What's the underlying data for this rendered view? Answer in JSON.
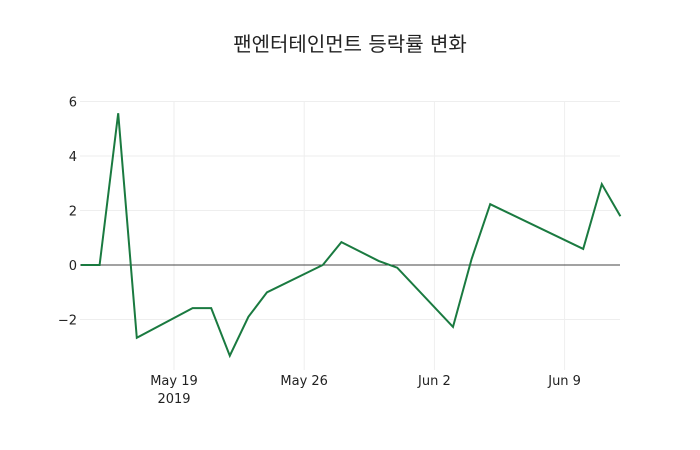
{
  "chart_data": {
    "type": "line",
    "title": "팬엔터테인먼트 등락률 변화",
    "xlabel": "",
    "ylabel": "",
    "x": [
      "2019-05-14",
      "2019-05-15",
      "2019-05-16",
      "2019-05-17",
      "2019-05-20",
      "2019-05-21",
      "2019-05-22",
      "2019-05-23",
      "2019-05-24",
      "2019-05-27",
      "2019-05-28",
      "2019-05-30",
      "2019-05-31",
      "2019-06-03",
      "2019-06-04",
      "2019-06-05",
      "2019-06-10",
      "2019-06-11",
      "2019-06-12"
    ],
    "series": [
      {
        "name": "등락률",
        "color": "#1a7a40",
        "values": [
          0.0,
          0.0,
          5.57,
          -2.67,
          -1.58,
          -1.58,
          -3.33,
          -1.9,
          -1.0,
          0.0,
          0.84,
          0.15,
          -0.1,
          -2.27,
          0.22,
          2.23,
          0.59,
          2.97,
          1.79
        ]
      }
    ],
    "x_ticks": [
      {
        "label": "May 19",
        "sublabel": "2019",
        "date": "2019-05-19"
      },
      {
        "label": "May 26",
        "sublabel": "",
        "date": "2019-05-26"
      },
      {
        "label": "Jun 2",
        "sublabel": "",
        "date": "2019-06-02"
      },
      {
        "label": "Jun 9",
        "sublabel": "",
        "date": "2019-06-09"
      }
    ],
    "y_ticks": [
      6,
      4,
      2,
      0,
      -2
    ],
    "y_tick_labels": [
      "6",
      "4",
      "2",
      "0",
      "−2"
    ],
    "ylim": [
      -3.7,
      6.2
    ],
    "grid": true,
    "legend": "none",
    "zero_line": true
  },
  "colors": {
    "line": "#1a7a40",
    "grid": "#eeeeee",
    "zero_line": "#444444"
  }
}
